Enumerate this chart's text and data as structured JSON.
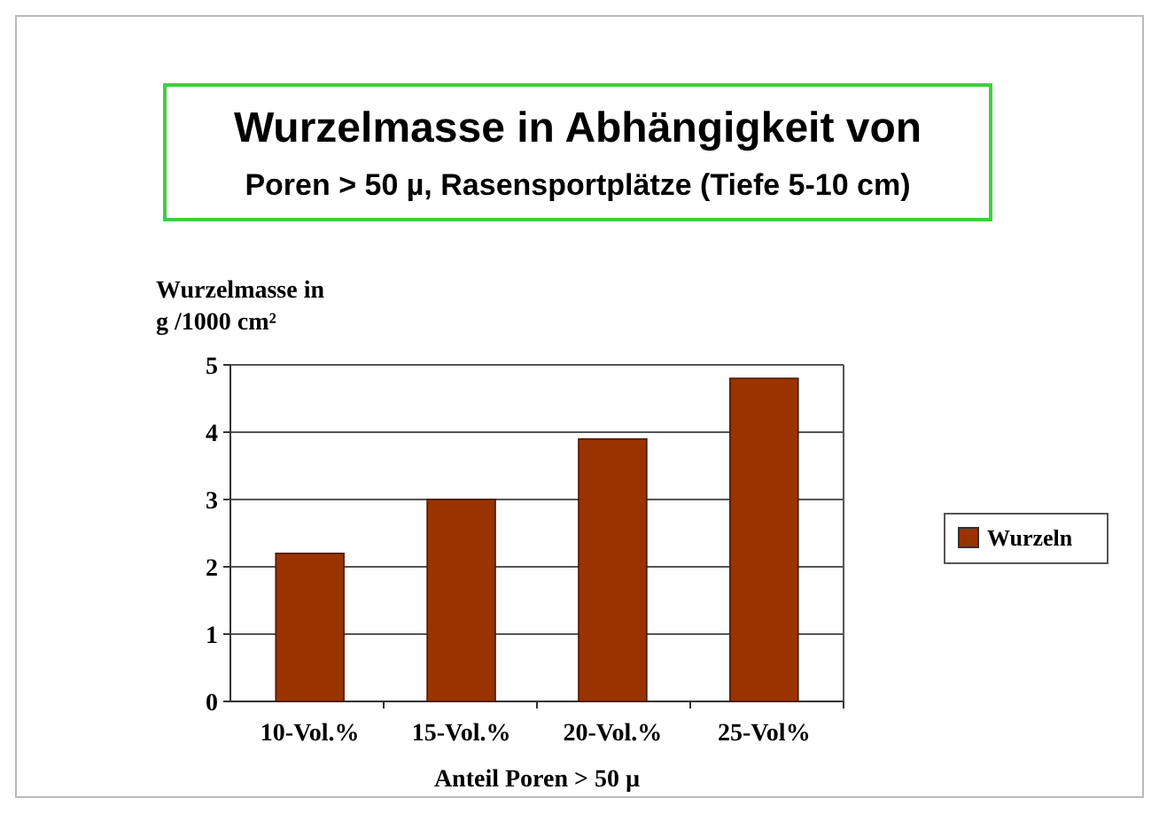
{
  "chart_data": {
    "type": "bar",
    "title": "Wurzelmasse in Abhängigkeit von",
    "subtitle": "Poren > 50 µ, Rasensportplätze (Tiefe 5-10 cm)",
    "ylabel": "Wurzelmasse in g /1000 cm²",
    "xlabel": "Anteil Poren > 50 µ",
    "categories": [
      "10-Vol.%",
      "15-Vol.%",
      "20-Vol.%",
      "25-Vol%"
    ],
    "series": [
      {
        "name": "Wurzeln",
        "color": "#993300",
        "values": [
          2.2,
          3.0,
          3.9,
          4.8
        ]
      }
    ],
    "ylim": [
      0,
      5
    ],
    "yticks": [
      0,
      1,
      2,
      3,
      4,
      5
    ],
    "grid": "y",
    "legend": "right"
  }
}
